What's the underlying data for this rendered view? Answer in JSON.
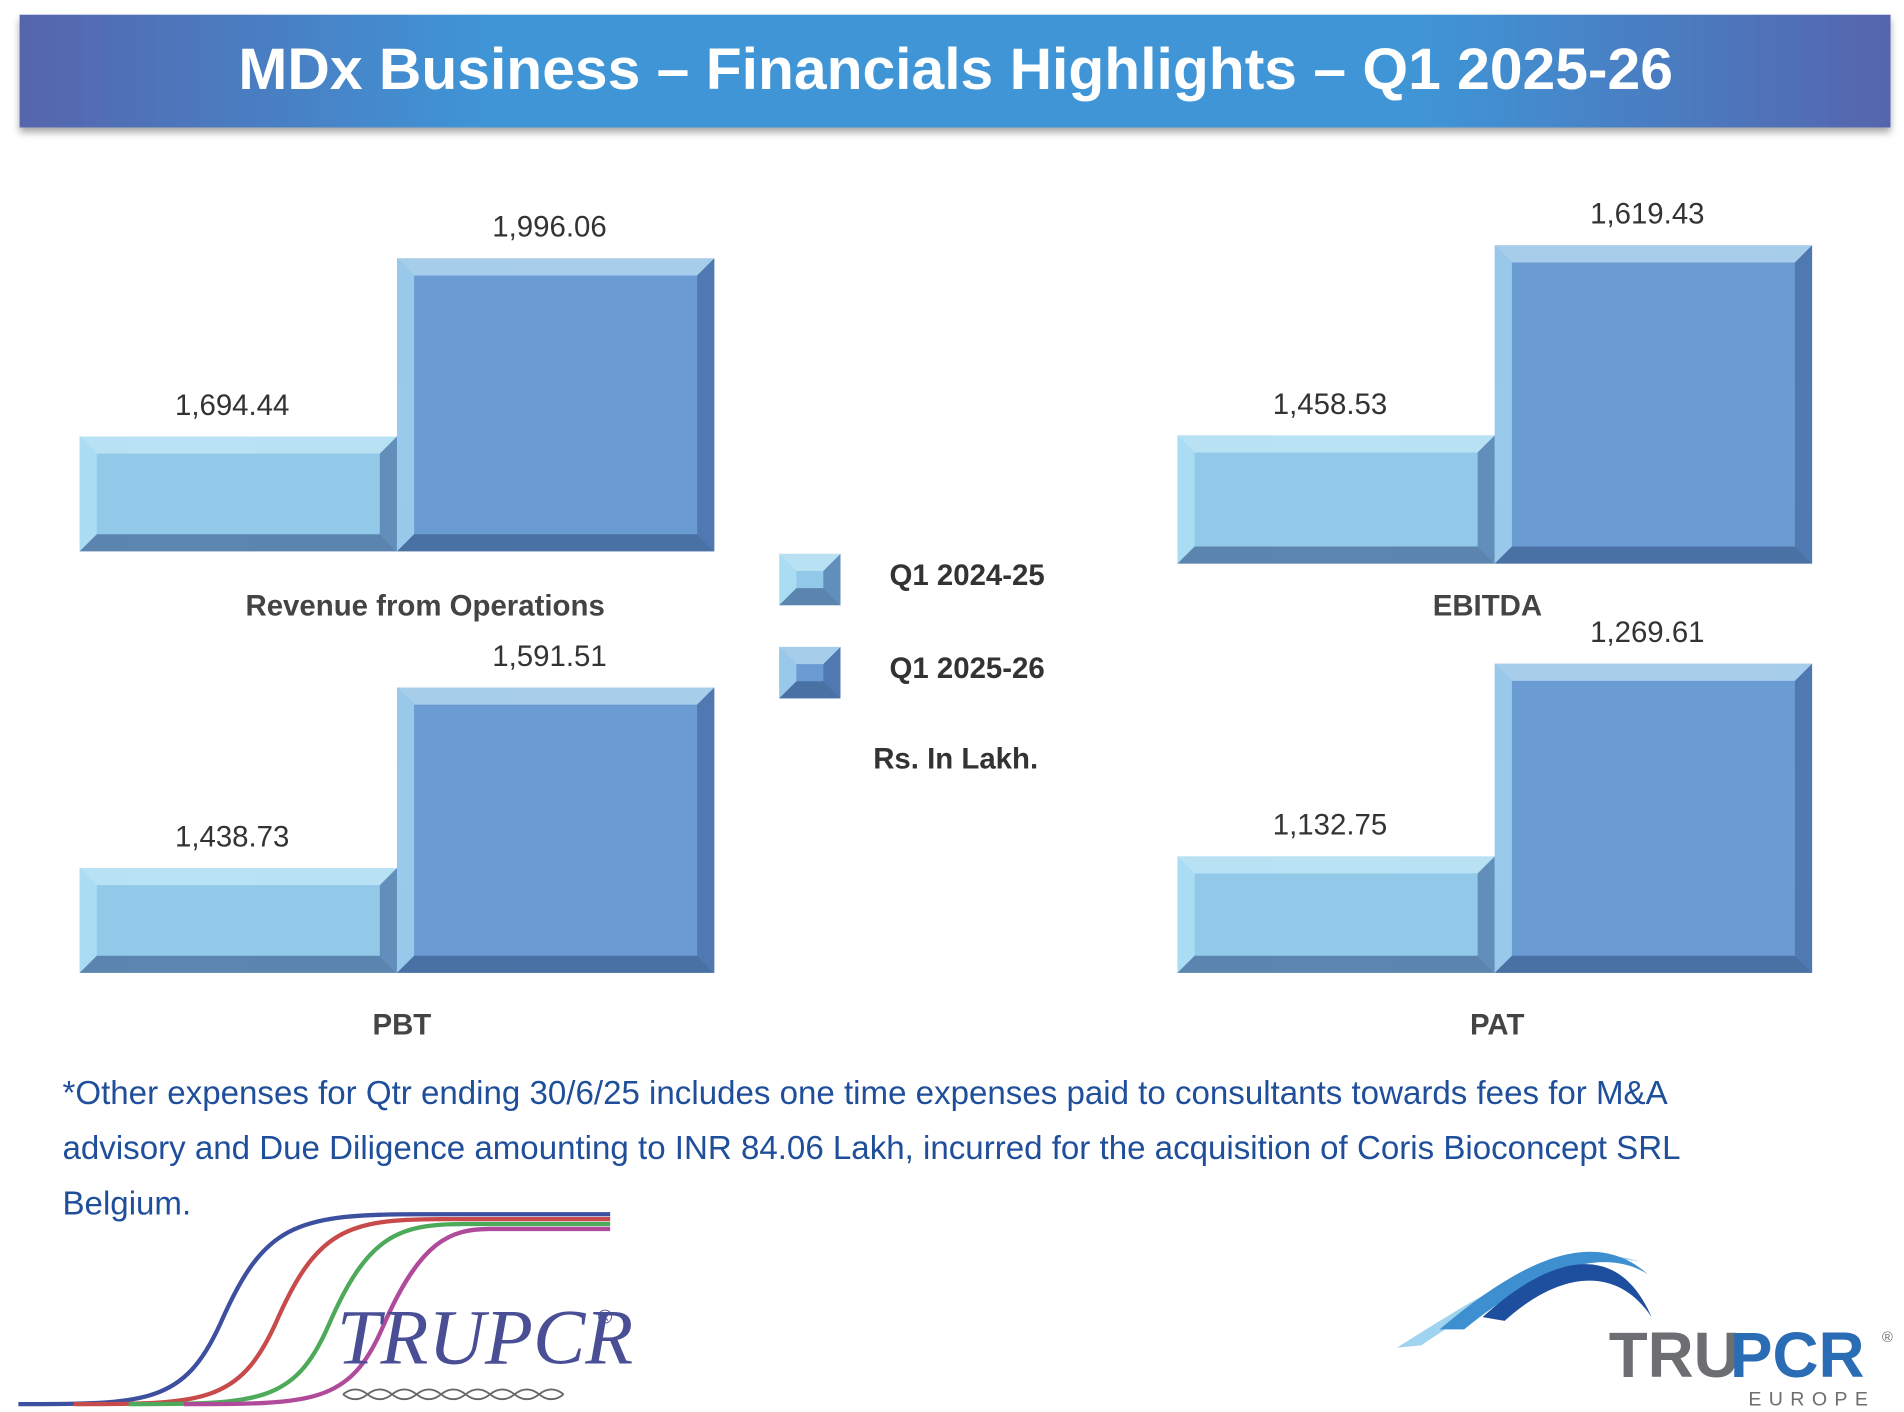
{
  "header": {
    "title": "MDx Business – Financials Highlights – Q1 2025-26"
  },
  "legend": {
    "items": [
      {
        "name": "Q1 2024-25",
        "color": "#92c9e8"
      },
      {
        "name": "Q1 2025-26",
        "color": "#6a9bd2"
      }
    ],
    "note": "Rs. In Lakh."
  },
  "chart_data": [
    {
      "type": "bar",
      "title": "Revenue from Operations",
      "values": [
        1694.44,
        1996.06
      ],
      "value_labels": [
        "1,694.44",
        "1,996.06"
      ],
      "ylim": [
        1500,
        2060
      ]
    },
    {
      "type": "bar",
      "title": "EBITDA",
      "values": [
        1458.53,
        1619.43
      ],
      "value_labels": [
        "1,458.53",
        "1,619.43"
      ],
      "ylim": [
        1350,
        1630
      ]
    },
    {
      "type": "bar",
      "title": "PBT",
      "values": [
        1438.73,
        1591.51
      ],
      "value_labels": [
        "1,438.73",
        "1,591.51"
      ],
      "ylim": [
        1350,
        1630
      ]
    },
    {
      "type": "bar",
      "title": "PAT",
      "values": [
        1132.75,
        1269.61
      ],
      "value_labels": [
        "1,132.75",
        "1,269.61"
      ],
      "ylim": [
        1050,
        1285
      ]
    }
  ],
  "footnote": [
    "*Other expenses for Qtr ending 30/6/25 includes one time expenses paid to consultants towards fees for M&A",
    "advisory and Due Diligence amounting to INR 84.06 Lakh, incurred for the acquisition of Coris Bioconcept SRL",
    "Belgium."
  ],
  "logos": {
    "left": {
      "name": "TRUPCR",
      "mark": "®"
    },
    "right": {
      "name_a": "TRU",
      "name_b": "PCR",
      "mark": "®",
      "region": "EUROPE"
    }
  }
}
